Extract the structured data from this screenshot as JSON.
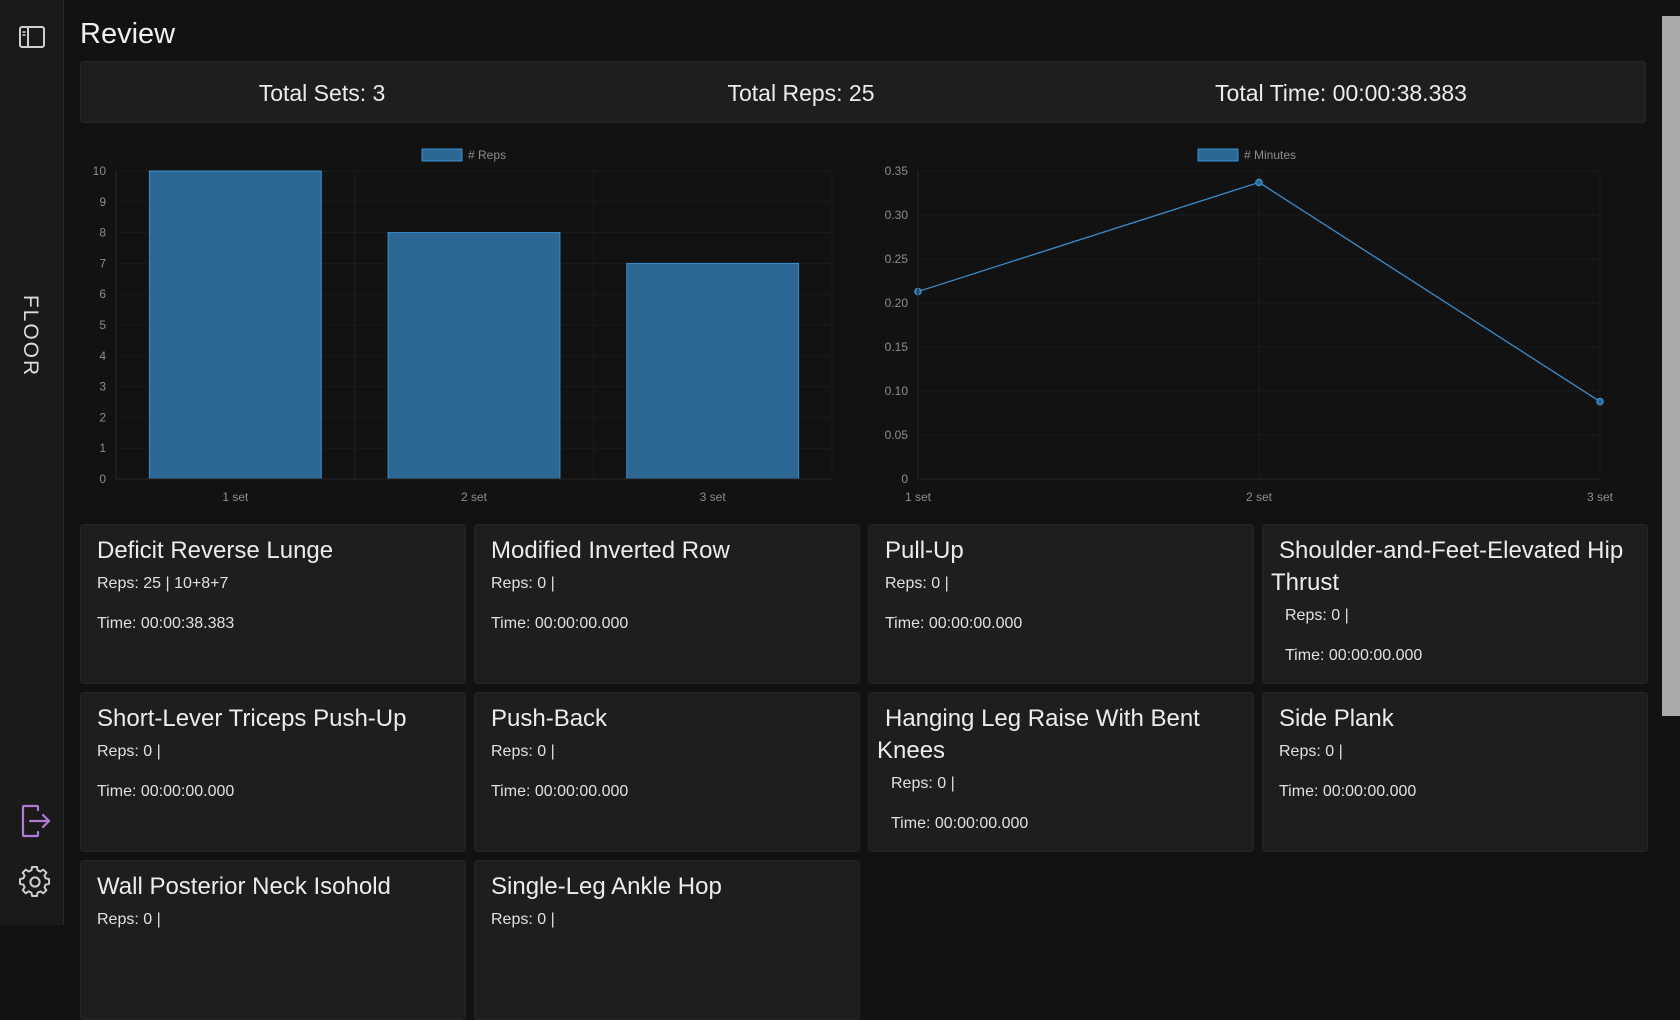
{
  "sidebar": {
    "toggle_icon": "sidebar-toggle-icon",
    "label": "FLOOR",
    "exit_icon": "exit-icon",
    "exit_color": "#b07ad8",
    "settings_icon": "gear-icon"
  },
  "page": {
    "title": "Review"
  },
  "summary": {
    "sets": "Total Sets: 3",
    "reps": "Total Reps: 25",
    "time": "Total Time: 00:00:38.383"
  },
  "chart_data": [
    {
      "type": "bar",
      "legend": "# Reps",
      "categories": [
        "1 set",
        "2 set",
        "3 set"
      ],
      "values": [
        10,
        8,
        7
      ],
      "ylim": [
        0,
        10
      ],
      "yticks": [
        "0",
        "1",
        "2",
        "3",
        "4",
        "5",
        "6",
        "7",
        "8",
        "9",
        "10"
      ],
      "color": "#2d6894",
      "border_color": "#3a8fd0",
      "legend_position": "top-center"
    },
    {
      "type": "line",
      "legend": "# Minutes",
      "categories": [
        "1 set",
        "2 set",
        "3 set"
      ],
      "values": [
        0.213,
        0.337,
        0.088
      ],
      "ylim": [
        0,
        0.35
      ],
      "yticks": [
        "0",
        "0.05",
        "0.10",
        "0.15",
        "0.20",
        "0.25",
        "0.30",
        "0.35"
      ],
      "color": "#3a8fd0",
      "legend_position": "top-center"
    }
  ],
  "exercises": [
    {
      "title": "Deficit Reverse Lunge",
      "reps": "Reps: 25 | 10+8+7",
      "time": "Time: 00:00:38.383"
    },
    {
      "title": "Modified Inverted Row",
      "reps": "Reps: 0 |",
      "time": "Time: 00:00:00.000"
    },
    {
      "title": "Pull-Up",
      "reps": "Reps: 0 |",
      "time": "Time: 00:00:00.000"
    },
    {
      "title": "Shoulder-and-Feet-Elevated Hip Thrust",
      "reps": "Reps: 0 |",
      "time": "Time: 00:00:00.000"
    },
    {
      "title": "Short-Lever Triceps Push-Up",
      "reps": "Reps: 0 |",
      "time": "Time: 00:00:00.000"
    },
    {
      "title": "Push-Back",
      "reps": "Reps: 0 |",
      "time": "Time: 00:00:00.000"
    },
    {
      "title": "Hanging Leg Raise With Bent Knees",
      "reps": "Reps: 0 |",
      "time": "Time: 00:00:00.000"
    },
    {
      "title": "Side Plank",
      "reps": "Reps: 0 |",
      "time": "Time: 00:00:00.000"
    },
    {
      "title": "Wall Posterior Neck Isohold",
      "reps": "Reps: 0 |",
      "time": ""
    },
    {
      "title": "Single-Leg Ankle Hop",
      "reps": "Reps: 0 |",
      "time": ""
    }
  ]
}
